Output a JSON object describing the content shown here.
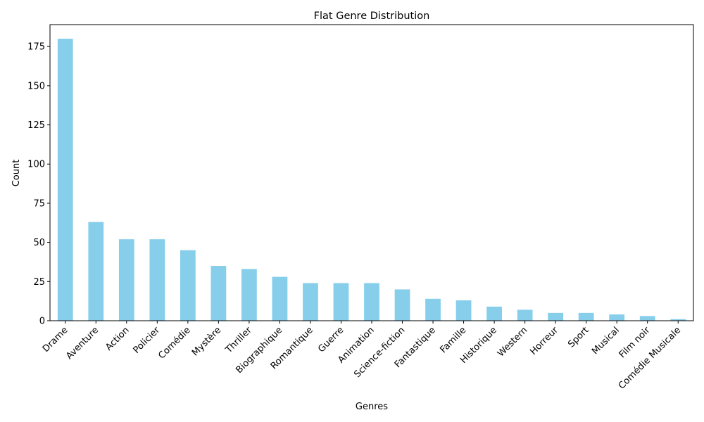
{
  "chart_data": {
    "type": "bar",
    "title": "Flat Genre Distribution",
    "xlabel": "Genres",
    "ylabel": "Count",
    "categories": [
      "Drame",
      "Aventure",
      "Action",
      "Policier",
      "Comédie",
      "Mystère",
      "Thriller",
      "Biographique",
      "Romantique",
      "Guerre",
      "Animation",
      "Science-fiction",
      "Fantastique",
      "Famille",
      "Historique",
      "Western",
      "Horreur",
      "Sport",
      "Musical",
      "Film noir",
      "Comédie Musicale"
    ],
    "values": [
      180,
      63,
      52,
      52,
      45,
      35,
      33,
      28,
      24,
      24,
      24,
      20,
      14,
      13,
      9,
      7,
      5,
      5,
      4,
      3,
      1
    ],
    "ylim": [
      0,
      189
    ],
    "yticks": [
      0,
      25,
      50,
      75,
      100,
      125,
      150,
      175
    ],
    "bar_color": "#87CEEB",
    "grid": false,
    "legend": false
  }
}
